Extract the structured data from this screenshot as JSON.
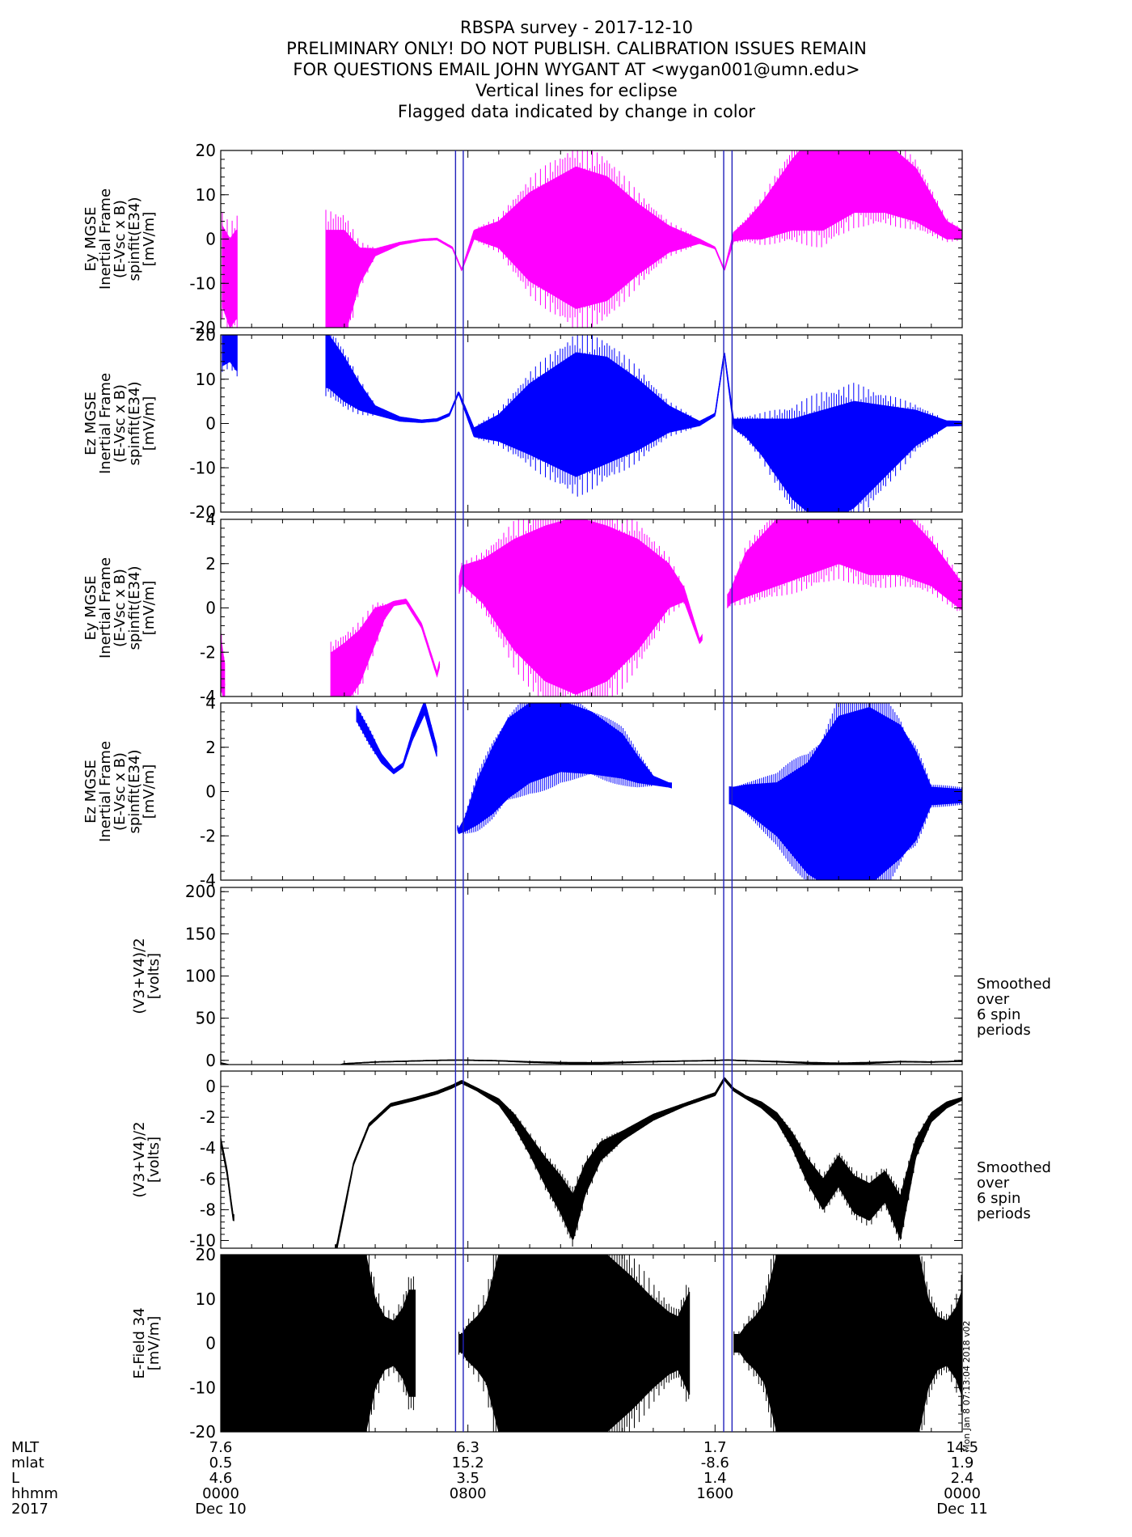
{
  "header": {
    "lines": [
      "RBSPA survey - 2017-12-10",
      "PRELIMINARY ONLY! DO NOT PUBLISH. CALIBRATION ISSUES REMAIN",
      "FOR QUESTIONS EMAIL JOHN WYGANT AT <wygan001@umn.edu>",
      "Vertical lines for eclipse",
      "Flagged data indicated by change in color"
    ]
  },
  "colors": {
    "magenta": "#ff00ff",
    "blue": "#0000ff",
    "black": "#000000",
    "eclipse": "#2222bb"
  },
  "eclipse_hours": [
    [
      7.6,
      7.85
    ],
    [
      16.28,
      16.55
    ]
  ],
  "side_notes": {
    "smoothed": [
      "Smoothed",
      "over",
      "6 spin",
      "periods"
    ]
  },
  "stamp": "Mon Jan  8 07:13:04 2018 v02",
  "chart_data": [
    {
      "type": "line",
      "name": "ey_mgse_wide",
      "color": "magenta",
      "ylabel": [
        "Ey MGSE",
        "Inertial Frame",
        "(E-Vsc x B)",
        "spinfit(E34)",
        "[mV/m]"
      ],
      "ylim": [
        -20,
        20
      ],
      "yticks": [
        -20,
        -10,
        0,
        10,
        20
      ],
      "xlim": [
        0,
        24
      ],
      "gaps": [
        [
          0.55,
          3.4
        ]
      ],
      "x": [
        0.05,
        0.3,
        0.5,
        3.5,
        4.0,
        4.5,
        5.0,
        5.8,
        6.5,
        7.0,
        7.5,
        7.8,
        8.2,
        9.0,
        10.0,
        11.5,
        12.5,
        13.5,
        14.5,
        15.5,
        16.0,
        16.3,
        16.6,
        17.0,
        17.5,
        18.5,
        19.5,
        20.5,
        21.5,
        22.5,
        23.5,
        24.0
      ],
      "y": [
        -6,
        -10,
        -8,
        -12,
        -10,
        -6,
        -3,
        -1,
        -0.2,
        0,
        -2,
        -7,
        1,
        1,
        0.5,
        0.3,
        0.1,
        0,
        0,
        -0.5,
        -2,
        -7,
        0.5,
        2,
        4,
        10,
        14,
        16,
        14,
        10,
        2,
        1
      ],
      "spread": [
        9,
        10,
        10,
        14,
        12,
        4,
        0.8,
        0.3,
        0.2,
        0.2,
        0.2,
        0.2,
        1,
        3,
        10,
        16,
        14,
        8,
        3,
        0.5,
        0.2,
        0.2,
        1,
        2,
        4,
        8,
        12,
        10,
        8,
        6,
        2,
        1
      ]
    },
    {
      "type": "line",
      "name": "ez_mgse_wide",
      "color": "blue",
      "ylabel": [
        "Ez MGSE",
        "Inertial Frame",
        "(E-Vsc x B)",
        "spinfit(E34)",
        "[mV/m]"
      ],
      "ylim": [
        -20,
        20
      ],
      "yticks": [
        -20,
        -10,
        0,
        10,
        20
      ],
      "xlim": [
        0,
        24
      ],
      "gaps": [
        [
          0.55,
          3.4
        ]
      ],
      "x": [
        0.05,
        0.3,
        0.5,
        3.5,
        4.0,
        4.5,
        5.0,
        5.8,
        6.5,
        7.0,
        7.4,
        7.7,
        8.2,
        9.0,
        10.0,
        11.5,
        12.5,
        13.5,
        14.5,
        15.5,
        16.0,
        16.3,
        16.6,
        17.0,
        17.5,
        18.5,
        19.5,
        20.5,
        21.5,
        22.5,
        23.5,
        24.0
      ],
      "y": [
        17,
        18,
        16,
        14,
        10,
        6,
        3,
        1,
        0.5,
        0.8,
        2,
        7,
        -2,
        -1,
        1,
        2,
        3,
        2,
        1,
        0,
        2,
        16,
        0,
        -1,
        -3,
        -8,
        -10,
        -7,
        -4,
        -1,
        0,
        0
      ],
      "spread": [
        4,
        4,
        4,
        6,
        5,
        3,
        1,
        0.5,
        0.3,
        0.3,
        0.3,
        0.3,
        1,
        3,
        8,
        14,
        12,
        8,
        3,
        0.5,
        0.3,
        0.3,
        1,
        2,
        4,
        9,
        13,
        12,
        8,
        4,
        0.6,
        0.5
      ]
    },
    {
      "type": "line",
      "name": "ey_mgse_zoom",
      "color": "magenta",
      "ylabel": [
        "Ey MGSE",
        "Inertial Frame",
        "(E-Vsc x B)",
        "spinfit(E34)",
        "[mV/m]"
      ],
      "ylim": [
        -4,
        4
      ],
      "yticks": [
        -4,
        -2,
        0,
        2,
        4
      ],
      "xlim": [
        0,
        24
      ],
      "gaps": [
        [
          0.15,
          3.55
        ],
        [
          7.1,
          7.7
        ],
        [
          15.6,
          16.4
        ]
      ],
      "x": [
        0.02,
        0.12,
        3.6,
        4.0,
        4.5,
        5.0,
        5.3,
        5.6,
        6.0,
        6.5,
        7.0,
        7.8,
        8.5,
        9.5,
        10.5,
        11.5,
        12.5,
        13.5,
        14.5,
        15.0,
        15.5,
        16.5,
        17.0,
        18.0,
        19.0,
        20.0,
        21.0,
        22.0,
        23.0,
        24.0
      ],
      "y": [
        -2.5,
        -3.5,
        -3.5,
        -3,
        -2.2,
        -0.8,
        -0.2,
        0.2,
        0.3,
        -0.8,
        -3,
        1.5,
        1.2,
        0.6,
        0.2,
        0.1,
        0.2,
        0.6,
        1,
        0.6,
        -1.5,
        0.5,
        1.5,
        2.5,
        3.5,
        4,
        3.5,
        3,
        2,
        0.5
      ],
      "spread": [
        1,
        1,
        1.5,
        1.4,
        1.2,
        0.8,
        0.3,
        0.1,
        0.1,
        0.1,
        0.1,
        0.4,
        1,
        2.5,
        3.5,
        4,
        3.5,
        2.5,
        1,
        0.3,
        0.1,
        0.3,
        1,
        1.5,
        2,
        2,
        2,
        1.5,
        1,
        0.6
      ]
    },
    {
      "type": "line",
      "name": "ez_mgse_zoom",
      "color": "blue",
      "ylabel": [
        "Ez MGSE",
        "Inertial Frame",
        "(E-Vsc x B)",
        "spinfit(E34)",
        "[mV/m]"
      ],
      "ylim": [
        -4,
        4
      ],
      "yticks": [
        -4,
        -2,
        0,
        2,
        4
      ],
      "xlim": [
        0,
        24
      ],
      "gaps": [
        [
          0,
          4.35
        ],
        [
          7.0,
          7.65
        ],
        [
          14.6,
          16.45
        ]
      ],
      "x": [
        4.4,
        4.8,
        5.2,
        5.6,
        5.9,
        6.2,
        6.6,
        7.7,
        7.9,
        8.3,
        8.8,
        9.3,
        10.0,
        11.0,
        12.0,
        13.0,
        13.5,
        14.0,
        14.5,
        16.6,
        17.0,
        18.0,
        19.0,
        20.0,
        21.0,
        22.0,
        22.5,
        23.0,
        24.0
      ],
      "y": [
        3.5,
        2.5,
        1.5,
        0.9,
        1.2,
        2.5,
        3.8,
        -1.8,
        -1.5,
        -0.5,
        0.5,
        1.5,
        2.2,
        2.5,
        2.2,
        1.6,
        1.0,
        0.5,
        0.3,
        -0.2,
        -0.3,
        -0.8,
        -1.2,
        -0.6,
        -0.2,
        0,
        -0.2,
        -0.2,
        -0.2
      ],
      "spread": [
        0.3,
        0.3,
        0.2,
        0.1,
        0.1,
        0.2,
        0.3,
        0.1,
        0.3,
        1,
        1.5,
        1.8,
        1.8,
        1.6,
        1.4,
        1.0,
        0.6,
        0.2,
        0.1,
        0.4,
        0.6,
        1.2,
        2.5,
        4,
        4,
        3,
        2,
        0.4,
        0.3
      ]
    },
    {
      "type": "line",
      "name": "vavg_wide",
      "color": "black",
      "ylabel": [
        "(V3+V4)/2",
        "[volts]"
      ],
      "ylim": [
        -5,
        205
      ],
      "yticks": [
        0,
        50,
        100,
        150,
        200
      ],
      "xlim": [
        0,
        24
      ],
      "gaps": [
        [
          0.4,
          3.5
        ]
      ],
      "side_note": true,
      "x": [
        0.0,
        0.35,
        3.6,
        4.0,
        5.0,
        6.0,
        7.0,
        7.8,
        9.0,
        10.0,
        11.0,
        12.0,
        13.0,
        14.0,
        15.0,
        16.0,
        16.4,
        17.0,
        18.0,
        19.0,
        20.0,
        21.0,
        22.0,
        23.0,
        24.0
      ],
      "y": [
        -3,
        -6,
        -8,
        -4,
        -2,
        -1,
        0,
        0.3,
        -0.5,
        -2,
        -3,
        -3.5,
        -2.5,
        -1.5,
        -0.8,
        -0.2,
        0.4,
        -0.4,
        -1.5,
        -3,
        -4,
        -3,
        -1.5,
        -2,
        -1
      ],
      "spread": [
        0.3,
        0.3,
        0.3,
        0.3,
        0.3,
        0.3,
        0.3,
        0.3,
        0.3,
        0.6,
        0.8,
        1,
        0.6,
        0.4,
        0.3,
        0.3,
        0.3,
        0.3,
        0.5,
        0.8,
        1,
        0.8,
        0.5,
        0.4,
        0.3
      ]
    },
    {
      "type": "line",
      "name": "vavg_zoom",
      "color": "black",
      "ylabel": [
        "(V3+V4)/2",
        "[volts]"
      ],
      "ylim": [
        -10.5,
        1
      ],
      "yticks": [
        -10,
        -8,
        -6,
        -4,
        -2,
        0
      ],
      "xlim": [
        0,
        24
      ],
      "gaps": [
        [
          0.45,
          3.7
        ]
      ],
      "side_note": true,
      "x": [
        0.0,
        0.2,
        0.4,
        3.75,
        4.0,
        4.3,
        4.8,
        5.5,
        6.3,
        7.0,
        7.5,
        7.8,
        8.3,
        9.0,
        9.5,
        10.0,
        10.5,
        11.0,
        11.4,
        11.8,
        12.3,
        13.0,
        14.0,
        15.0,
        16.0,
        16.3,
        16.6,
        17.0,
        17.5,
        18.0,
        18.5,
        19.0,
        19.5,
        20.0,
        20.5,
        21.0,
        21.5,
        22.0,
        22.5,
        23.0,
        23.5,
        24.0
      ],
      "y": [
        -3.5,
        -5.5,
        -8.5,
        -10.5,
        -8,
        -5,
        -2.5,
        -1.2,
        -0.8,
        -0.4,
        0,
        0.3,
        -0.2,
        -1.0,
        -2.2,
        -3.8,
        -5.5,
        -7.0,
        -8.5,
        -6.0,
        -4.2,
        -3.2,
        -2.0,
        -1.2,
        -0.5,
        0.5,
        -0.2,
        -0.7,
        -1.2,
        -2.0,
        -3.5,
        -5.5,
        -7.0,
        -5.5,
        -7.0,
        -7.5,
        -6.5,
        -8.5,
        -4.0,
        -2.0,
        -1.2,
        -0.8
      ],
      "spread": [
        0.2,
        0.2,
        0.2,
        0.2,
        0.2,
        0.1,
        0.1,
        0.1,
        0.1,
        0.1,
        0.1,
        0.1,
        0.1,
        0.2,
        0.4,
        0.6,
        0.9,
        1.2,
        1.5,
        1.0,
        0.6,
        0.3,
        0.2,
        0.1,
        0.1,
        0.1,
        0.1,
        0.1,
        0.2,
        0.3,
        0.5,
        0.8,
        1.0,
        1.0,
        1.2,
        1.2,
        1.0,
        1.4,
        0.6,
        0.3,
        0.2,
        0.1
      ]
    },
    {
      "type": "area",
      "name": "efield34",
      "color": "black",
      "ylabel": [
        "E-Field 34",
        "[mV/m]"
      ],
      "ylim": [
        -20,
        20
      ],
      "yticks": [
        -20,
        -10,
        0,
        10,
        20
      ],
      "xlim": [
        0,
        24
      ],
      "gaps": [
        [
          6.3,
          7.7
        ],
        [
          15.2,
          16.6
        ]
      ],
      "x": [
        0.0,
        3.0,
        4.7,
        5.0,
        5.3,
        5.6,
        5.9,
        6.1,
        6.3,
        7.7,
        7.8,
        8.0,
        8.3,
        8.6,
        9.0,
        9.5,
        10.5,
        11.5,
        12.5,
        13.3,
        14.0,
        14.5,
        14.8,
        15.0,
        15.2,
        16.6,
        16.8,
        17.0,
        17.3,
        17.6,
        18.0,
        19.0,
        20.0,
        21.0,
        22.0,
        22.6,
        22.9,
        23.2,
        23.5,
        23.8,
        24.0
      ],
      "y": [
        0,
        0,
        0,
        0,
        0,
        0,
        0,
        0,
        0,
        0,
        0,
        0,
        0,
        0,
        0,
        0,
        0,
        0,
        0,
        0,
        0,
        0,
        0,
        0,
        0,
        0,
        0,
        0,
        0,
        0,
        0,
        0,
        0,
        0,
        0,
        0,
        0,
        0,
        0,
        0,
        0
      ],
      "spread": [
        20,
        20,
        20,
        10,
        6,
        5,
        8,
        12,
        12,
        2,
        2,
        4,
        6,
        9,
        20,
        20,
        20,
        20,
        20,
        15,
        10,
        7,
        6,
        9,
        12,
        2,
        2,
        4,
        6,
        9,
        20,
        20,
        20,
        20,
        20,
        20,
        10,
        6,
        5,
        8,
        12
      ]
    }
  ],
  "footer": {
    "row_labels": [
      "MLT",
      "mlat",
      "L",
      "hhmm",
      "2017"
    ],
    "columns": [
      {
        "hours": 0,
        "values": [
          "7.6",
          "0.5",
          "4.6",
          "0000",
          "Dec 10"
        ]
      },
      {
        "hours": 8,
        "values": [
          "6.3",
          "15.2",
          "3.5",
          "0800",
          ""
        ]
      },
      {
        "hours": 16,
        "values": [
          "1.7",
          "-8.6",
          "1.4",
          "1600",
          ""
        ]
      },
      {
        "hours": 24,
        "values": [
          "14.5",
          "1.9",
          "2.4",
          "0000",
          "Dec 11"
        ]
      }
    ]
  }
}
